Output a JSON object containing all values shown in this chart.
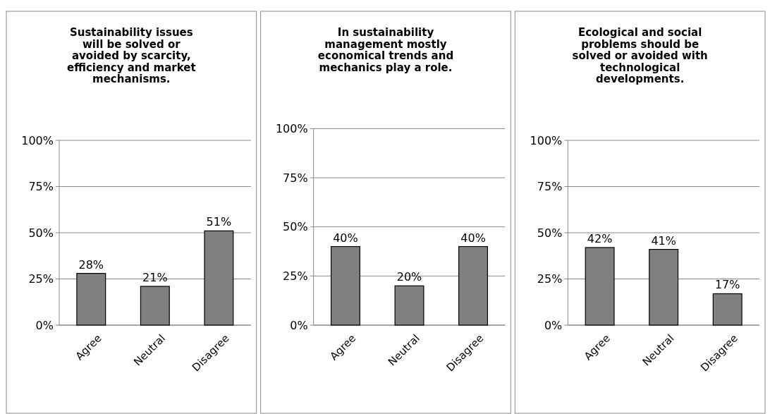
{
  "chart_data": [
    {
      "type": "bar",
      "title": "Sustainability issues will be solved or avoided by scarcity, efficiency and market mechanisms.",
      "categories": [
        "Agree",
        "Neutral",
        "Disagree"
      ],
      "values": [
        28,
        21,
        51
      ],
      "color": "#808080",
      "ylim": [
        0,
        100
      ],
      "yticks": [
        {
          "value": 0,
          "label": "0%"
        },
        {
          "value": 25,
          "label": "25%"
        },
        {
          "value": 50,
          "label": "50%"
        },
        {
          "value": 75,
          "label": "75%"
        },
        {
          "value": 100,
          "label": "100%"
        }
      ],
      "value_labels": [
        "28%",
        "21%",
        "51%"
      ],
      "grid": "y"
    },
    {
      "type": "bar",
      "title": "In sustainability management mostly economical trends and mechanics play a role.",
      "categories": [
        "Agree",
        "Neutral",
        "Disagree"
      ],
      "values": [
        40,
        20,
        40
      ],
      "color": "#808080",
      "ylim": [
        0,
        100
      ],
      "yticks": [
        {
          "value": 0,
          "label": "0%"
        },
        {
          "value": 25,
          "label": "25%"
        },
        {
          "value": 50,
          "label": "50%"
        },
        {
          "value": 75,
          "label": "75%"
        },
        {
          "value": 100,
          "label": "100%"
        }
      ],
      "value_labels": [
        "40%",
        "20%",
        "40%"
      ],
      "grid": "y"
    },
    {
      "type": "bar",
      "title": "Ecological and social problems should be solved or avoided with technological developments.",
      "categories": [
        "Agree",
        "Neutral",
        "Disagree"
      ],
      "values": [
        42,
        41,
        17
      ],
      "color": "#808080",
      "ylim": [
        0,
        100
      ],
      "yticks": [
        {
          "value": 0,
          "label": "0%"
        },
        {
          "value": 25,
          "label": "25%"
        },
        {
          "value": 50,
          "label": "50%"
        },
        {
          "value": 75,
          "label": "75%"
        },
        {
          "value": 100,
          "label": "100%"
        }
      ],
      "value_labels": [
        "42%",
        "41%",
        "17%"
      ],
      "grid": "y"
    }
  ]
}
